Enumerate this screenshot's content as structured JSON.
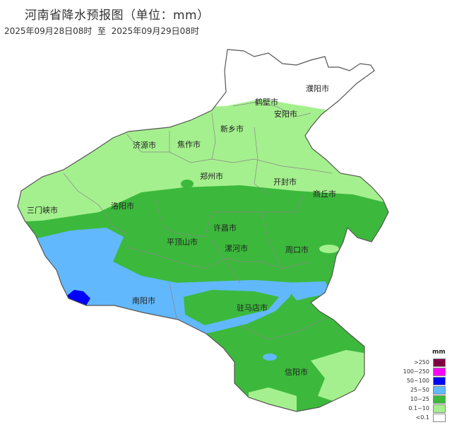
{
  "header": {
    "title": "河南省降水预报图（单位：mm）",
    "period": "2025年09月28日08时  至  2025年09月29日08时"
  },
  "map": {
    "colors": {
      "lt_0_1": "#ffffff",
      "0_1_10": "#a5f08e",
      "10_25": "#3cb93c",
      "25_50": "#62b8fc",
      "50_100": "#0000fe",
      "100_250": "#fb00fb",
      "gt_250": "#7f0040"
    },
    "cities": [
      {
        "name": "濮阳市"
      },
      {
        "name": "鹤壁市"
      },
      {
        "name": "安阳市"
      },
      {
        "name": "新乡市"
      },
      {
        "name": "济源市"
      },
      {
        "name": "焦作市"
      },
      {
        "name": "郑州市"
      },
      {
        "name": "开封市"
      },
      {
        "name": "商丘市"
      },
      {
        "name": "三门峡市"
      },
      {
        "name": "洛阳市"
      },
      {
        "name": "许昌市"
      },
      {
        "name": "平顶山市"
      },
      {
        "name": "漯河市"
      },
      {
        "name": "周口市"
      },
      {
        "name": "南阳市"
      },
      {
        "name": "驻马店市"
      },
      {
        "name": "信阳市"
      }
    ]
  },
  "legend": {
    "unit": "mm",
    "items": [
      {
        "label": ">250",
        "color": "#7f0040"
      },
      {
        "label": "100~250",
        "color": "#fb00fb"
      },
      {
        "label": "50~100",
        "color": "#0000fe"
      },
      {
        "label": "25~50",
        "color": "#62b8fc"
      },
      {
        "label": "10~25",
        "color": "#3cb93c"
      },
      {
        "label": "0.1~10",
        "color": "#a5f08e"
      },
      {
        "label": "<0.1",
        "color": "#ffffff"
      }
    ]
  }
}
